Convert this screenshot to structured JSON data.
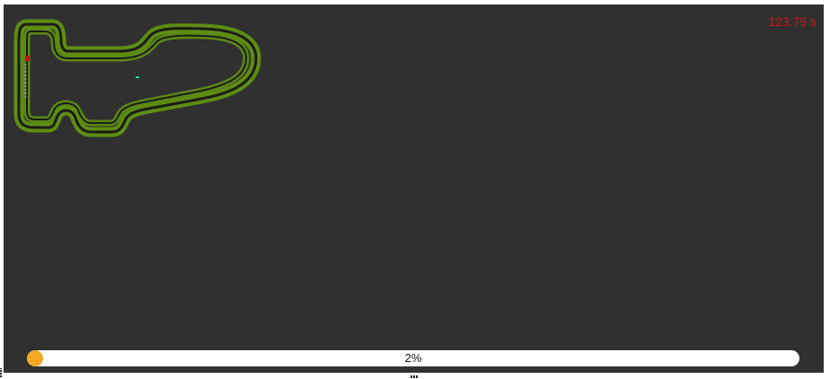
{
  "game": {
    "timer_text": "123.79 s",
    "progress": {
      "value": 0.02,
      "label": "2%"
    }
  },
  "colors": {
    "background": "#303030",
    "track_outer": "#5e8d12",
    "track_inner": "#1c1c1c",
    "timer": "#d31212",
    "progress_fill": "#f5a623",
    "car": "#cc1111",
    "marker": "#2bd6a0"
  }
}
